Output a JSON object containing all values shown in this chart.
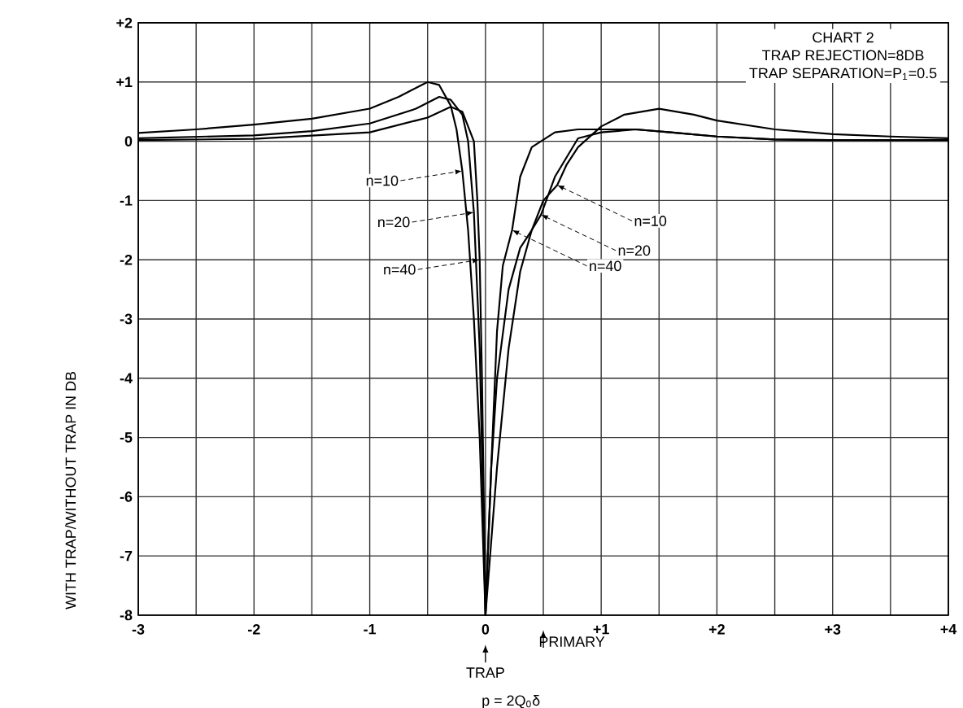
{
  "chart_data": {
    "type": "line",
    "ylabel": "WITH TRAP/WITHOUT TRAP IN DB",
    "xlabel": "p = 2Q$_{0}$δ",
    "annotations": [
      "CHART 2",
      "TRAP REJECTION=8DB",
      "TRAP SEPARATION=P$_{1}$=0.5",
      {
        "text": "n=10",
        "x": -0.2,
        "y": -0.5
      },
      {
        "text": "n=20",
        "x": -0.1,
        "y": -1.2
      },
      {
        "text": "n=40",
        "x": -0.05,
        "y": -2
      },
      {
        "text": "n=10",
        "x": 0.62,
        "y": -0.74
      },
      {
        "text": "n=20",
        "x": 0.48,
        "y": -1.24
      },
      {
        "text": "n=40",
        "x": 0.23,
        "y": -1.5
      },
      "TRAP",
      "PRIMARY"
    ],
    "series": [
      {
        "color": "#000000",
        "x": [
          -3,
          -2.5,
          -2,
          -1.5,
          -1,
          -0.75,
          -0.6,
          -0.5,
          -0.4,
          -0.3,
          -0.25,
          -0.2,
          -0.15,
          -0.1,
          -0.05,
          0,
          0.1,
          0.2,
          0.3,
          0.4,
          0.5,
          0.62,
          0.7,
          0.8,
          1,
          1.2,
          1.5,
          1.8,
          2,
          2.5,
          3,
          3.5,
          4
        ],
        "values": [
          0.14,
          0.2,
          0.28,
          0.38,
          0.55,
          0.75,
          0.9,
          1,
          0.95,
          0.6,
          0.2,
          -0.5,
          -1.5,
          -3,
          -5,
          -8,
          -5.5,
          -3.5,
          -2.2,
          -1.5,
          -1,
          -0.74,
          -0.4,
          -0.1,
          0.25,
          0.45,
          0.55,
          0.45,
          0.35,
          0.2,
          0.12,
          0.08,
          0.05
        ]
      },
      {
        "color": "#000000",
        "x": [
          -3,
          -2,
          -1.5,
          -1,
          -0.6,
          -0.4,
          -0.3,
          -0.2,
          -0.15,
          -0.1,
          -0.05,
          0,
          0.05,
          0.1,
          0.2,
          0.3,
          0.4,
          0.48,
          0.6,
          0.8,
          1,
          1.3,
          1.6,
          2,
          2.5,
          3,
          4
        ],
        "values": [
          0.05,
          0.1,
          0.17,
          0.3,
          0.55,
          0.75,
          0.7,
          0.45,
          0,
          -1.2,
          -3.5,
          -8,
          -5.5,
          -4,
          -2.5,
          -1.8,
          -1.5,
          -1.24,
          -0.6,
          0.05,
          0.15,
          0.2,
          0.15,
          0.08,
          0.03,
          0.02,
          0.02
        ]
      },
      {
        "color": "#000000",
        "x": [
          -3,
          -2,
          -1,
          -0.5,
          -0.3,
          -0.2,
          -0.1,
          -0.07,
          -0.05,
          -0.03,
          0,
          0.05,
          0.1,
          0.15,
          0.23,
          0.3,
          0.4,
          0.6,
          0.8,
          1,
          1.3,
          1.6,
          2,
          2.5,
          3,
          4
        ],
        "values": [
          0.02,
          0.04,
          0.15,
          0.4,
          0.58,
          0.5,
          0,
          -1,
          -2,
          -4,
          -8,
          -5.5,
          -3.2,
          -2.1,
          -1.5,
          -0.6,
          -0.1,
          0.15,
          0.2,
          0.2,
          0.2,
          0.15,
          0.08,
          0.03,
          0.02,
          0.02
        ]
      }
    ],
    "xlim": [
      -3,
      4
    ],
    "xticks": [
      -3,
      {
        "value": -2.5,
        "label": null
      },
      -2,
      {
        "value": -1.5,
        "label": null
      },
      -1,
      {
        "value": -0.5,
        "label": null
      },
      0,
      {
        "value": 0.5,
        "label": null
      },
      {
        "value": 1,
        "label": "+1"
      },
      {
        "value": 1.5,
        "label": null
      },
      {
        "value": 2,
        "label": "+2"
      },
      {
        "value": 2.5,
        "label": null
      },
      {
        "value": 3,
        "label": "+3"
      },
      {
        "value": 3.5,
        "label": null
      },
      {
        "value": 4,
        "label": "+4"
      }
    ],
    "ylim": [
      -8,
      2
    ],
    "yticks": [
      -8,
      -7,
      -6,
      -5,
      -4,
      -3,
      -2,
      -1,
      0,
      {
        "value": 1,
        "label": "+1"
      },
      {
        "value": 2,
        "label": "+2"
      }
    ],
    "grid": true,
    "marker": "none",
    "line_style": "solid"
  }
}
